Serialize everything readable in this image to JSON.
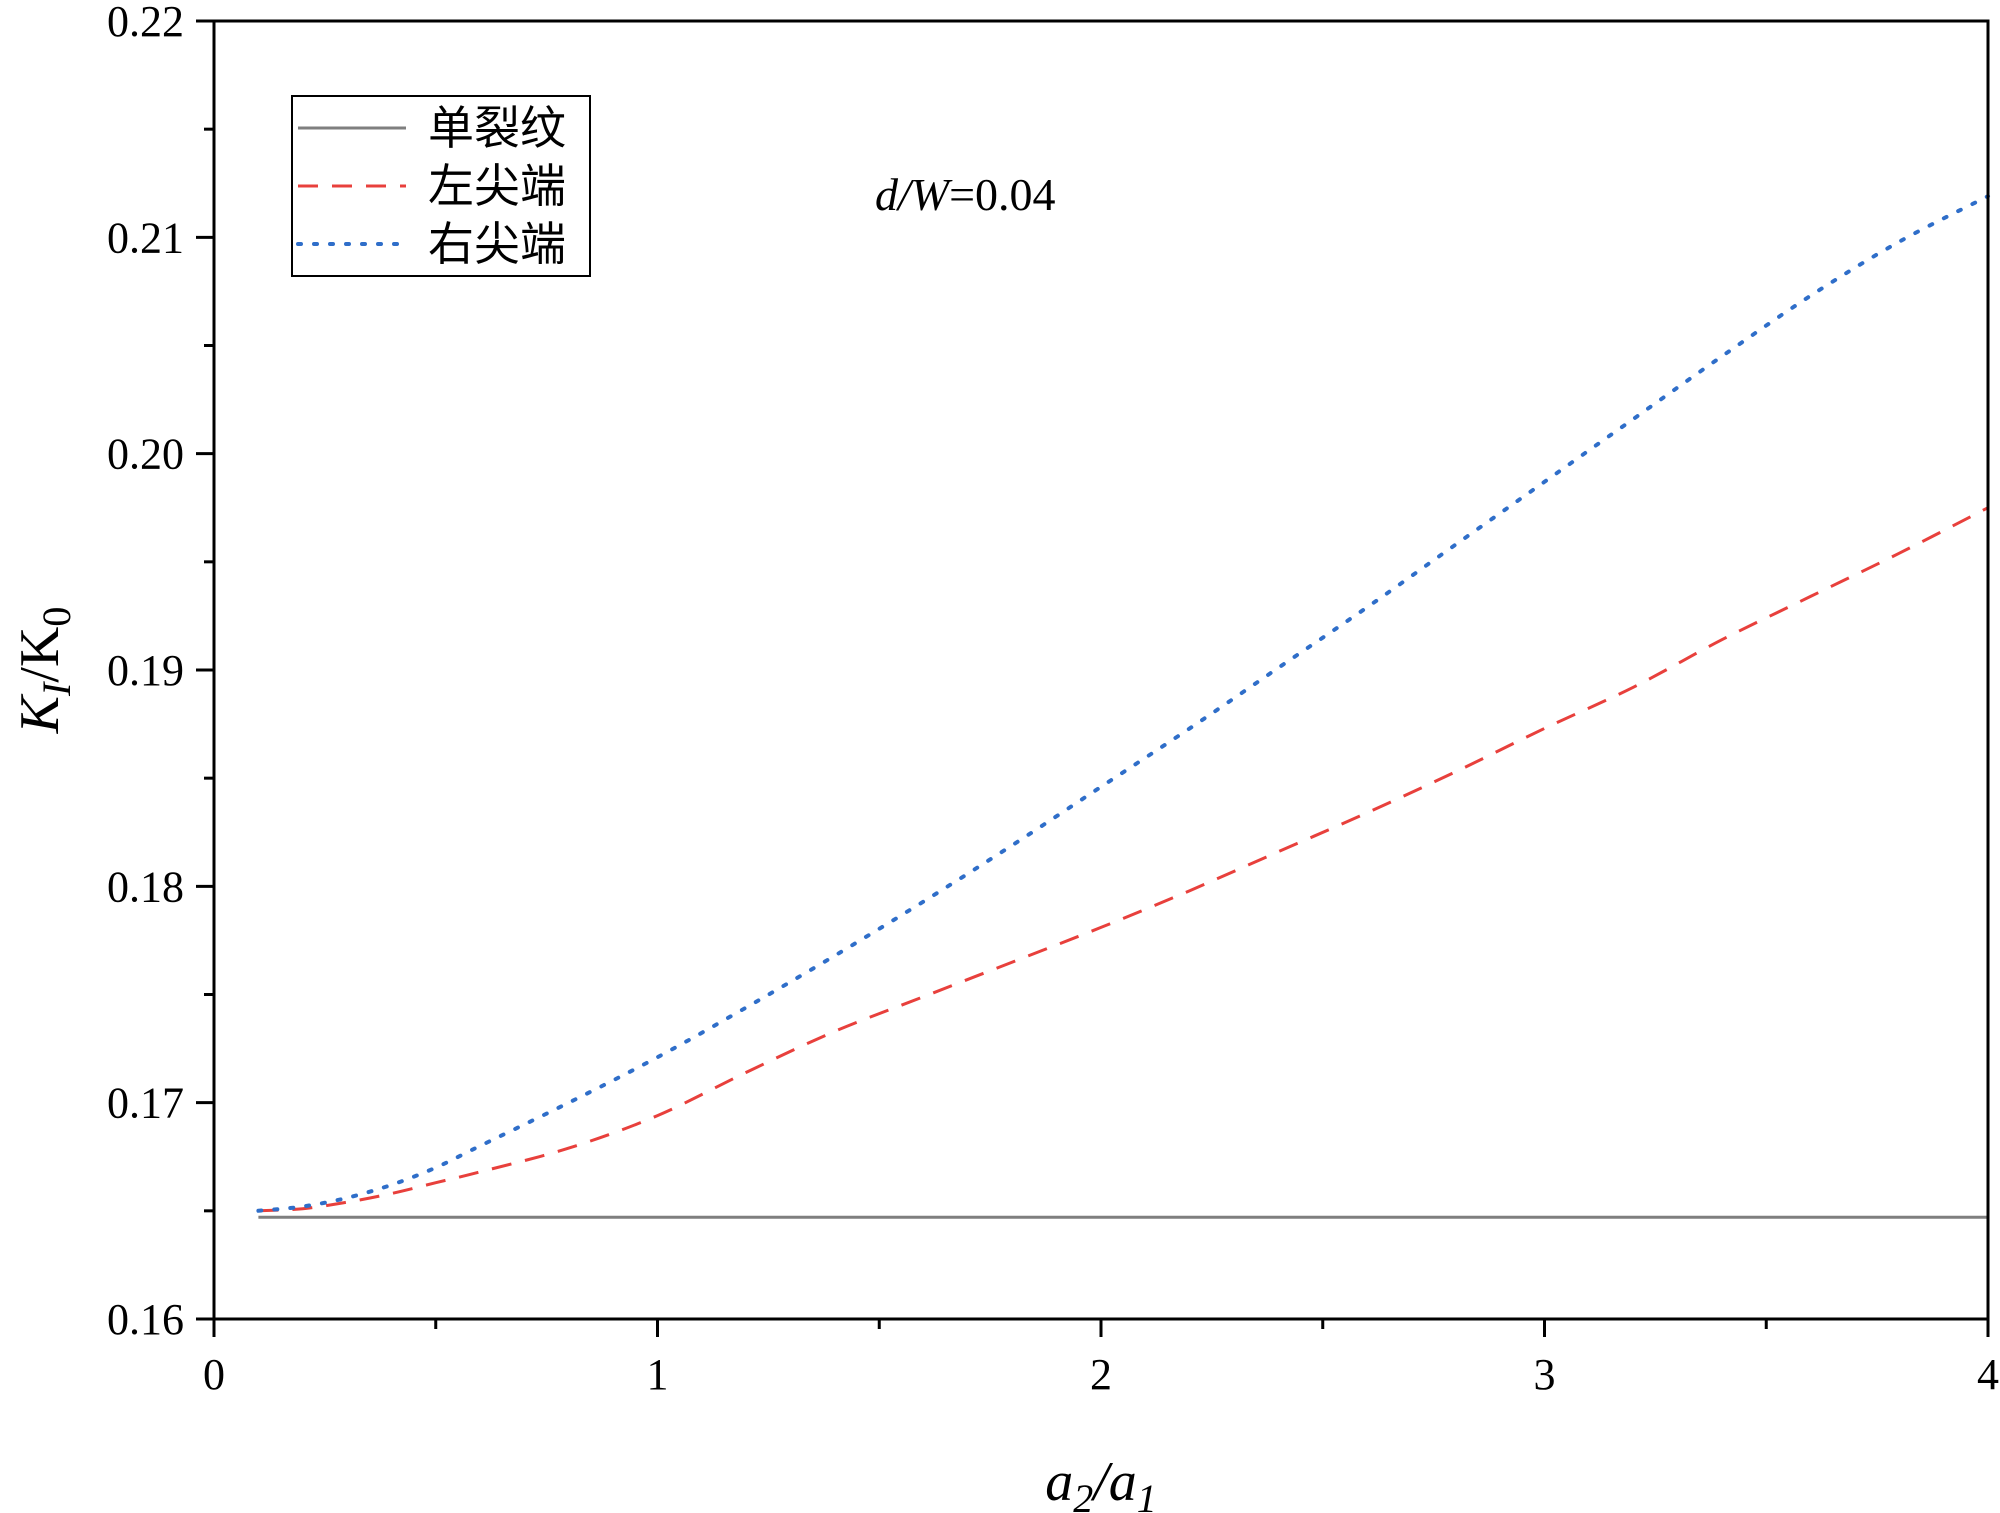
{
  "chart_data": {
    "type": "line",
    "xlabel": "a2/a1",
    "ylabel": "KI/K0",
    "xlim": [
      0,
      4
    ],
    "ylim": [
      0.16,
      0.22
    ],
    "x_ticks": [
      "0",
      "1",
      "2",
      "3",
      "4"
    ],
    "y_ticks": [
      "0.16",
      "0.17",
      "0.18",
      "0.19",
      "0.20",
      "0.21",
      "0.22"
    ],
    "annotation": {
      "prefix": "d/W",
      "value": "=0.04"
    },
    "legend": {
      "position": "top-left"
    },
    "series": [
      {
        "name": "单裂纹",
        "color": "#7f7f7f",
        "style": "solid",
        "x": [
          0.1,
          4.0
        ],
        "y": [
          0.1647,
          0.1647
        ]
      },
      {
        "name": "左尖端",
        "color": "#e8403c",
        "style": "dashed",
        "x": [
          0.1,
          0.2,
          0.3,
          0.4,
          0.5,
          0.6,
          0.8,
          1.0,
          1.2,
          1.4,
          1.6,
          1.8,
          2.0,
          2.2,
          2.4,
          2.6,
          2.8,
          3.0,
          3.2,
          3.4,
          3.6,
          3.8,
          4.0
        ],
        "y": [
          0.165,
          0.1651,
          0.1654,
          0.1658,
          0.1663,
          0.1668,
          0.1679,
          0.1694,
          0.1714,
          0.1733,
          0.1749,
          0.1765,
          0.1781,
          0.1798,
          0.1816,
          0.1834,
          0.1853,
          0.1873,
          0.1892,
          0.1914,
          0.1934,
          0.1954,
          0.1975
        ]
      },
      {
        "name": "右尖端",
        "color": "#2f6ec9",
        "style": "dotted",
        "x": [
          0.1,
          0.2,
          0.3,
          0.4,
          0.5,
          0.6,
          0.8,
          1.0,
          1.2,
          1.4,
          1.6,
          1.8,
          2.0,
          2.2,
          2.4,
          2.6,
          2.8,
          3.0,
          3.2,
          3.4,
          3.6,
          3.8,
          4.0
        ],
        "y": [
          0.165,
          0.1652,
          0.1656,
          0.1662,
          0.167,
          0.168,
          0.17,
          0.1721,
          0.1744,
          0.1768,
          0.1793,
          0.1819,
          0.1846,
          0.1873,
          0.1901,
          0.1929,
          0.1958,
          0.1987,
          0.2016,
          0.2045,
          0.2073,
          0.2098,
          0.2119
        ]
      }
    ]
  }
}
